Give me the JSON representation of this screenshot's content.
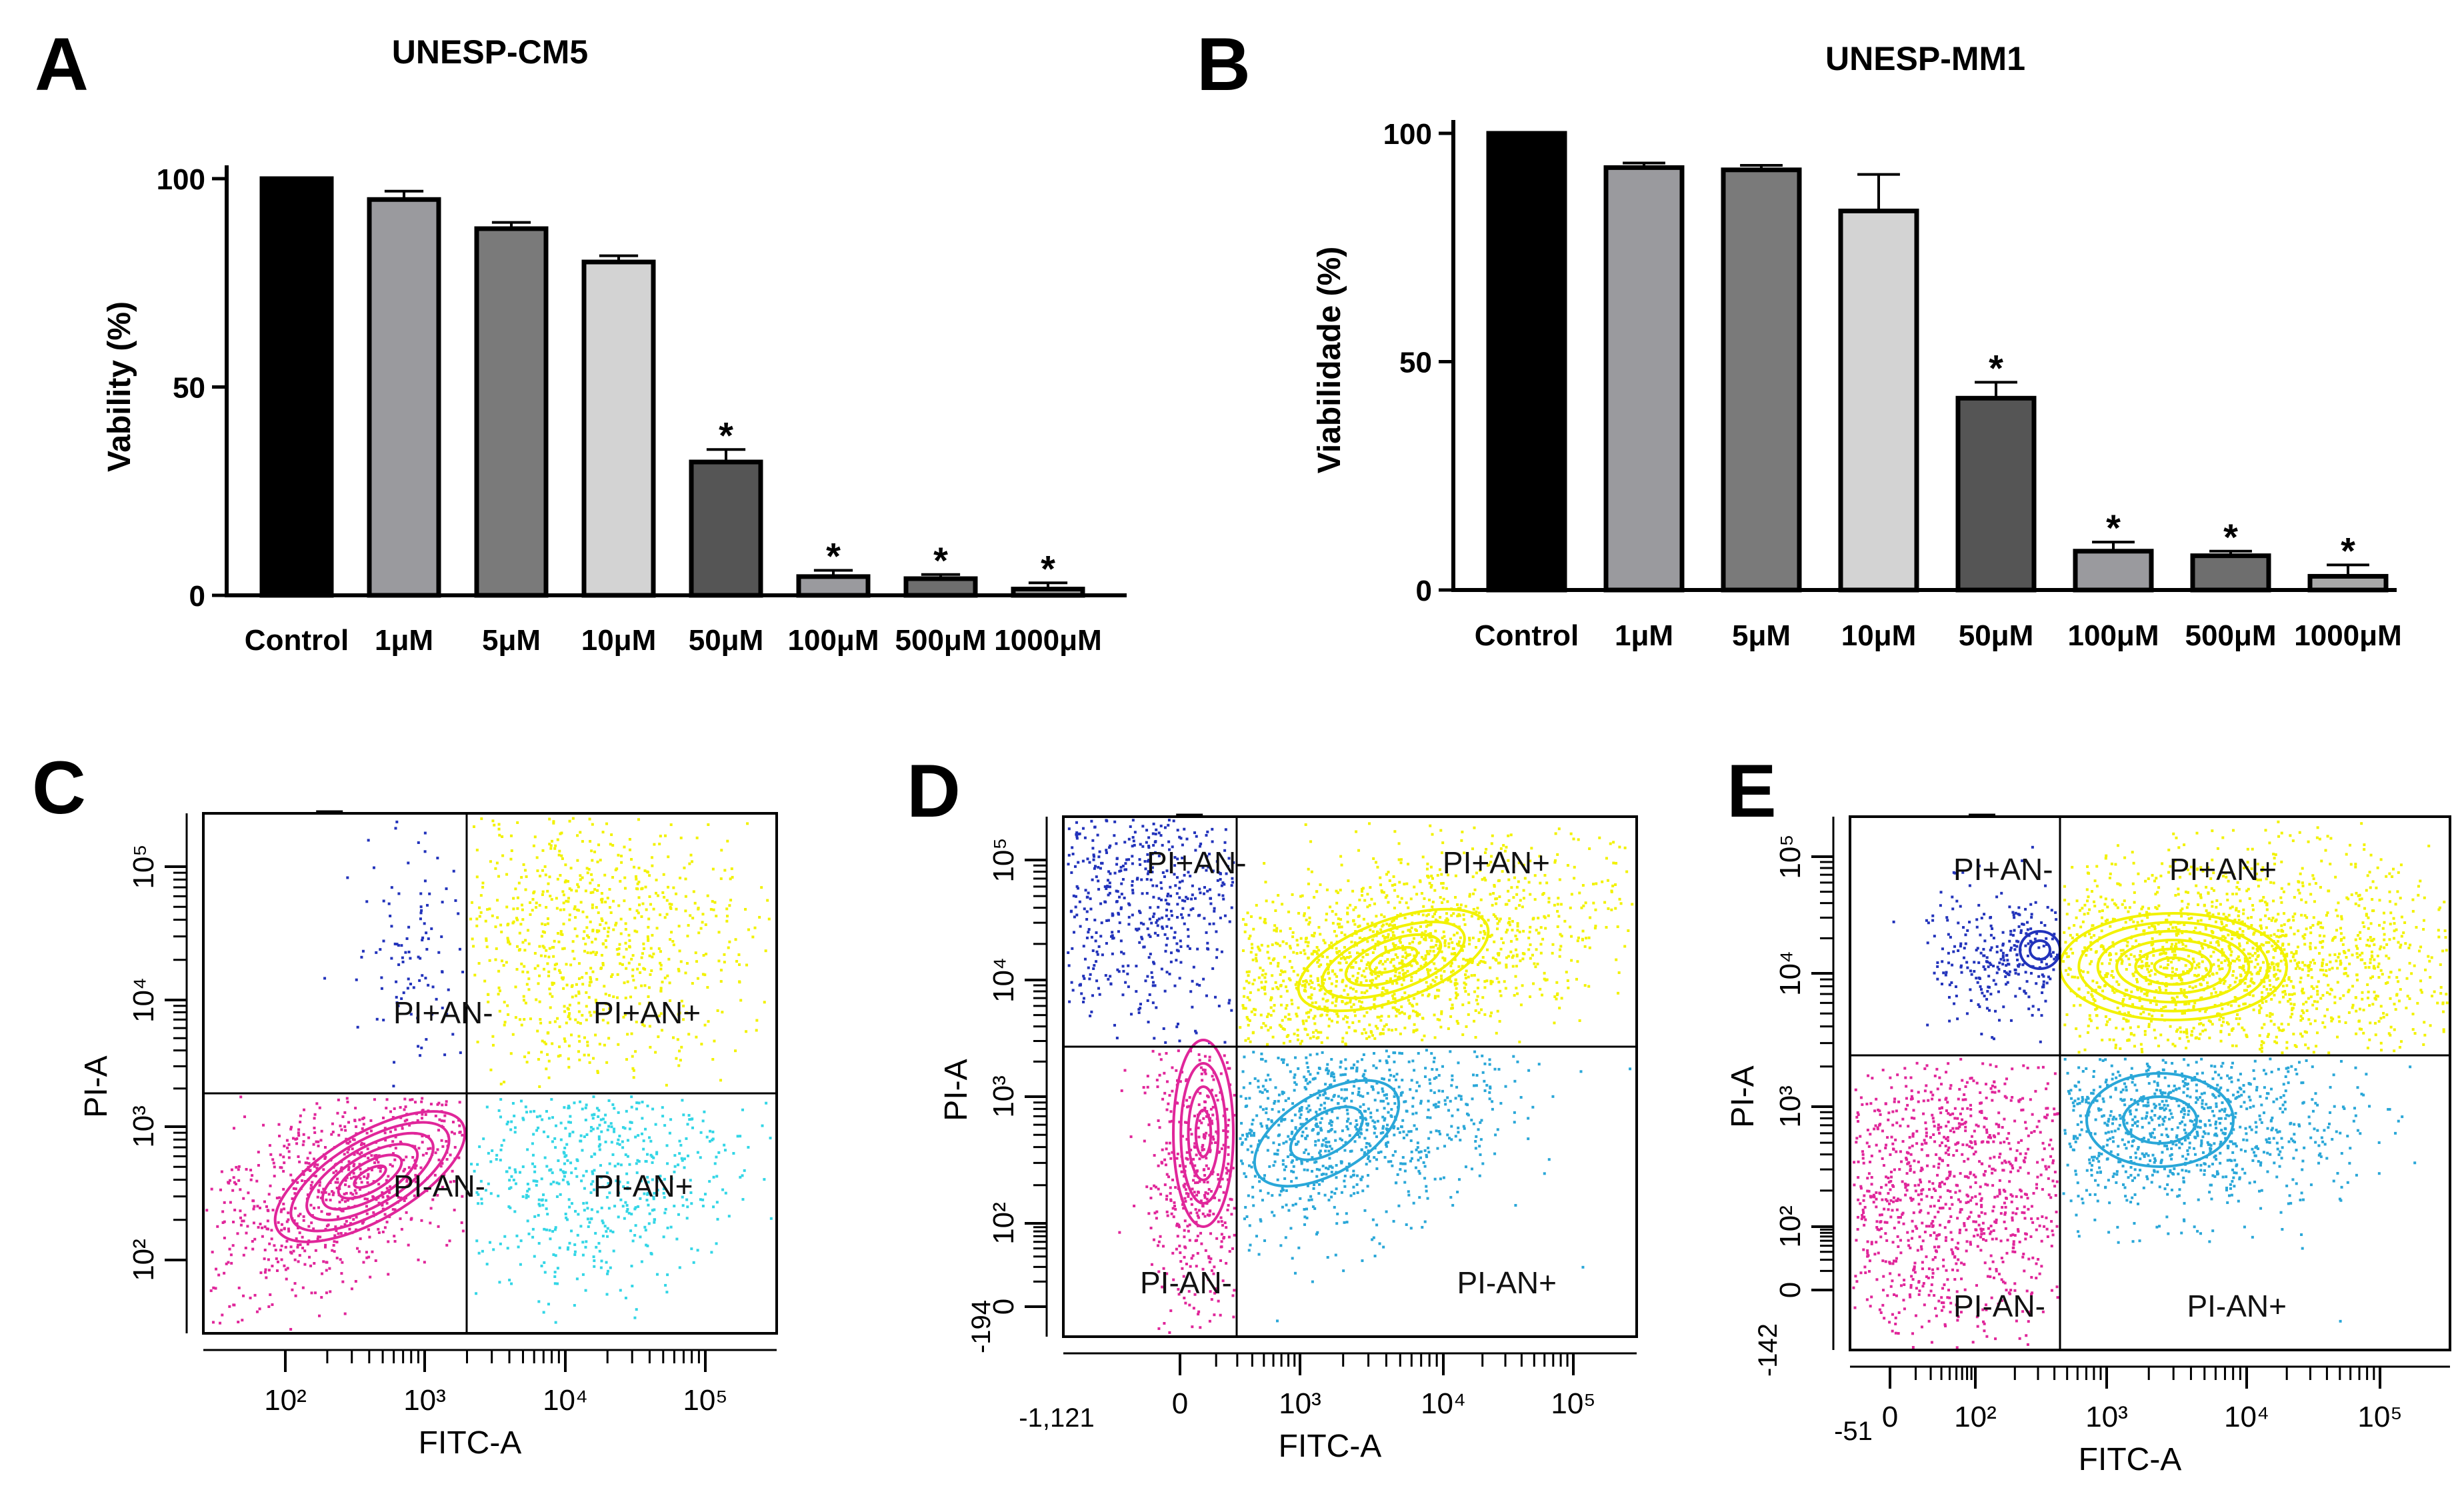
{
  "chart_data": [
    {
      "panel": "A",
      "type": "bar",
      "title": "UNESP-CM5",
      "ylabel": "Vability (%)",
      "xlabel": "",
      "ylim": [
        0,
        100
      ],
      "yticks": [
        "0",
        "50",
        "100"
      ],
      "categories": [
        "Control",
        "1μM",
        "5μM",
        "10μM",
        "50μM",
        "100μM",
        "500μM",
        "1000μM"
      ],
      "values": [
        100,
        95,
        88,
        80,
        32,
        4.5,
        4,
        1.5
      ],
      "errors": [
        0,
        2,
        1.5,
        1.5,
        3,
        1.5,
        1,
        1.5
      ],
      "significant": [
        false,
        false,
        false,
        false,
        true,
        true,
        true,
        true
      ],
      "significance_symbol": "*",
      "bar_colors": [
        "#000000",
        "#9a9a9e",
        "#7a7a7a",
        "#d3d3d3",
        "#555555",
        "#9a9a9e",
        "#6e6e6e",
        "#a8a8a8"
      ]
    },
    {
      "panel": "B",
      "type": "bar",
      "title": "UNESP-MM1",
      "ylabel": "Viabilidade (%)",
      "xlabel": "",
      "ylim": [
        0,
        100
      ],
      "yticks": [
        "0",
        "50",
        "100"
      ],
      "categories": [
        "Control",
        "1μM",
        "5μM",
        "10μM",
        "50μM",
        "100μM",
        "500μM",
        "1000μM"
      ],
      "values": [
        100,
        92.5,
        92,
        83,
        42,
        8.5,
        7.5,
        3
      ],
      "errors": [
        0,
        1,
        1,
        8,
        3.5,
        2,
        1,
        2.5
      ],
      "significant": [
        false,
        false,
        false,
        false,
        true,
        true,
        true,
        true
      ],
      "significance_symbol": "*",
      "bar_colors": [
        "#000000",
        "#9a9a9e",
        "#7a7a7a",
        "#d3d3d3",
        "#555555",
        "#9a9a9e",
        "#6e6e6e",
        "#a8a8a8"
      ]
    },
    {
      "panel": "C",
      "type": "scatter",
      "xlabel": "FITC-A",
      "ylabel": "PI-A",
      "x_ticks": [
        "10²",
        "10³",
        "10⁴",
        "10⁵"
      ],
      "y_ticks": [
        "10²",
        "10³",
        "10⁴",
        "10⁵"
      ],
      "extra_x_ticks": [],
      "extra_y_ticks": [],
      "quadrant_labels": {
        "ul": "PI+AN-",
        "ur": "PI+AN+",
        "ll": "PI-AN-",
        "lr": "PI-AN+"
      },
      "population_colors": {
        "ul": "#2233bb",
        "ur": "#f2f200",
        "ll": "#e0269a",
        "lr": "#33d6e6"
      }
    },
    {
      "panel": "D",
      "type": "scatter",
      "xlabel": "FITC-A",
      "ylabel": "PI-A",
      "x_ticks": [
        "0",
        "10³",
        "10⁴",
        "10⁵"
      ],
      "y_ticks": [
        "0",
        "10²",
        "10³",
        "10⁴",
        "10⁵"
      ],
      "extra_x_ticks": [
        "-1,121"
      ],
      "extra_y_ticks": [
        "-194"
      ],
      "quadrant_labels": {
        "ul": "PI+AN-",
        "ur": "PI+AN+",
        "ll": "PI-AN-",
        "lr": "PI-AN+"
      },
      "population_colors": {
        "ul": "#2233bb",
        "ur": "#f2f200",
        "ll": "#e0269a",
        "lr": "#2aa7d8"
      }
    },
    {
      "panel": "E",
      "type": "scatter",
      "xlabel": "FITC-A",
      "ylabel": "PI-A",
      "x_ticks": [
        "0",
        "10²",
        "10³",
        "10⁴",
        "10⁵"
      ],
      "y_ticks": [
        "0",
        "10²",
        "10³",
        "10⁴",
        "10⁵"
      ],
      "extra_x_ticks": [
        "-51"
      ],
      "extra_y_ticks": [
        "-142"
      ],
      "quadrant_labels": {
        "ul": "PI+AN-",
        "ur": "PI+AN+",
        "ll": "PI-AN-",
        "lr": "PI-AN+"
      },
      "population_colors": {
        "ul": "#2233bb",
        "ur": "#f2f200",
        "ll": "#e0269a",
        "lr": "#2aa7d8"
      }
    }
  ]
}
